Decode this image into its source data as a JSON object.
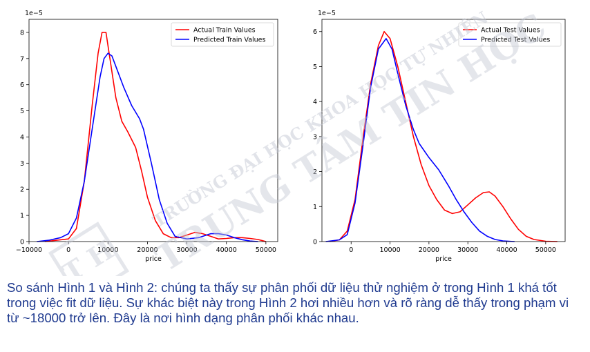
{
  "chart_data": [
    {
      "type": "line",
      "title": "",
      "xlabel": "price",
      "ylabel": "",
      "y_scale_label": "1e−5",
      "xlim": [
        -10000,
        53000
      ],
      "ylim": [
        0,
        8.5
      ],
      "xticks": [
        -10000,
        0,
        10000,
        20000,
        30000,
        40000,
        50000
      ],
      "xtick_labels": [
        "−10000",
        "0",
        "10000",
        "20000",
        "30000",
        "40000",
        "50000"
      ],
      "yticks": [
        0,
        1,
        2,
        3,
        4,
        5,
        6,
        7,
        8
      ],
      "ytick_labels": [
        "0",
        "1",
        "2",
        "3",
        "4",
        "5",
        "6",
        "7",
        "8"
      ],
      "legend_position": "top-right",
      "grid": false,
      "series": [
        {
          "name": "Actual Train Values",
          "color": "#ff0000",
          "x": [
            -6000,
            0,
            2000,
            4000,
            6000,
            7500,
            8500,
            9500,
            10500,
            12000,
            13500,
            15000,
            17000,
            18500,
            20000,
            22000,
            24000,
            26000,
            28000,
            30000,
            32000,
            34000,
            36000,
            38000,
            40000,
            42000,
            44000,
            46000,
            48000,
            50000
          ],
          "y": [
            0,
            0.1,
            0.5,
            2.3,
            5.2,
            7.2,
            8.0,
            8.0,
            7.0,
            5.5,
            4.6,
            4.2,
            3.6,
            2.7,
            1.7,
            0.8,
            0.3,
            0.15,
            0.15,
            0.25,
            0.35,
            0.3,
            0.2,
            0.1,
            0.12,
            0.15,
            0.15,
            0.12,
            0.08,
            0.0
          ]
        },
        {
          "name": "Predicted Train Values",
          "color": "#0000ff",
          "x": [
            -8000,
            -5000,
            -2000,
            0,
            2000,
            4000,
            6000,
            8000,
            9000,
            10000,
            11000,
            12000,
            14000,
            16000,
            18000,
            19000,
            21000,
            23000,
            25000,
            27000,
            30000,
            33000,
            36000,
            38000,
            40000,
            42000,
            44000,
            46000,
            48000
          ],
          "y": [
            0,
            0.05,
            0.15,
            0.3,
            0.9,
            2.3,
            4.3,
            6.3,
            7.0,
            7.2,
            7.1,
            6.7,
            5.9,
            5.2,
            4.7,
            4.3,
            3.0,
            1.6,
            0.7,
            0.2,
            0.1,
            0.15,
            0.3,
            0.3,
            0.25,
            0.15,
            0.07,
            0.02,
            0.0
          ]
        }
      ]
    },
    {
      "type": "line",
      "title": "",
      "xlabel": "price",
      "ylabel": "",
      "y_scale_label": "1e−5",
      "xlim": [
        -7500,
        55000
      ],
      "ylim": [
        0,
        6.35
      ],
      "xticks": [
        0,
        10000,
        20000,
        30000,
        40000,
        50000
      ],
      "xtick_labels": [
        "0",
        "10000",
        "20000",
        "30000",
        "40000",
        "50000"
      ],
      "yticks": [
        0,
        1,
        2,
        3,
        4,
        5,
        6
      ],
      "ytick_labels": [
        "0",
        "1",
        "2",
        "3",
        "4",
        "5",
        "6"
      ],
      "legend_position": "top-right",
      "grid": false,
      "series": [
        {
          "name": "Actual Test Values",
          "color": "#ff0000",
          "x": [
            -5500,
            -3000,
            -1000,
            1000,
            3000,
            5000,
            7000,
            8500,
            10000,
            12000,
            14000,
            16000,
            18000,
            20000,
            22000,
            24000,
            26000,
            28000,
            30000,
            32000,
            34000,
            35500,
            37000,
            39000,
            41000,
            43000,
            45000,
            47000,
            50000,
            53000
          ],
          "y": [
            0,
            0.05,
            0.3,
            1.2,
            2.9,
            4.5,
            5.6,
            6.0,
            5.8,
            5.0,
            4.0,
            3.0,
            2.2,
            1.6,
            1.2,
            0.9,
            0.8,
            0.85,
            1.05,
            1.25,
            1.4,
            1.42,
            1.3,
            1.0,
            0.65,
            0.35,
            0.15,
            0.06,
            0.01,
            0.0
          ]
        },
        {
          "name": "Predicted Test Values",
          "color": "#0000ff",
          "x": [
            -6500,
            -3000,
            -1000,
            1000,
            3000,
            5000,
            7000,
            9000,
            10500,
            12000,
            14000,
            16000,
            17500,
            20000,
            22500,
            25000,
            27000,
            29000,
            31000,
            33000,
            35000,
            37000,
            39000,
            42000
          ],
          "y": [
            0,
            0.05,
            0.2,
            1.1,
            2.7,
            4.4,
            5.5,
            5.8,
            5.5,
            4.8,
            3.9,
            3.2,
            2.8,
            2.4,
            2.05,
            1.6,
            1.2,
            0.85,
            0.55,
            0.3,
            0.15,
            0.06,
            0.02,
            0.0
          ]
        }
      ]
    }
  ],
  "watermark": {
    "line1": "TRƯỜNG ĐẠI HỌC KHOA HỌC TỰ NHIÊN",
    "line2": "TRUNG TÂM TIN HỌC",
    "logo_text": "T H",
    "color": "#c5c9d4"
  },
  "caption": "So sánh Hình 1 và Hình 2: chúng ta thấy sự phân phối dữ liệu thử nghiệm ở trong Hình 1 khá tốt trong việc fit dữ liệu. Sự khác biệt này trong Hình 2 hơi nhiều hơn và rõ ràng dễ thấy trong phạm vi từ ~18000 trở lên. Đây là nơi hình dạng phân phối khác nhau."
}
